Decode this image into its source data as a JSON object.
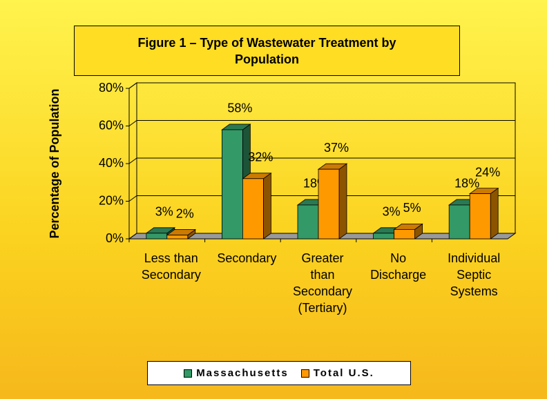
{
  "chart_data": {
    "type": "bar3d",
    "title": "Figure 1 – Type of Wastewater Treatment by Population",
    "y_label": "Percentage of Population",
    "categories": [
      "Less than Secondary",
      "Secondary",
      "Greater than Secondary (Tertiary)",
      "No Discharge",
      "Individual Septic Systems"
    ],
    "series": [
      {
        "name": "Massachusetts",
        "color": "#339966",
        "values": [
          3,
          58,
          18,
          3,
          18
        ],
        "value_labels": [
          "3%",
          "58%",
          "18%",
          "3%",
          "18%"
        ]
      },
      {
        "name": "Total U.S.",
        "color": "#ff9900",
        "values": [
          2,
          32,
          37,
          5,
          24
        ],
        "value_labels": [
          "2%",
          "32%",
          "37%",
          "5%",
          "24%"
        ]
      }
    ],
    "ylim": [
      0,
      80
    ],
    "yticks": [
      {
        "value": 0,
        "label": "0%"
      },
      {
        "value": 20,
        "label": "20%"
      },
      {
        "value": 40,
        "label": "40%"
      },
      {
        "value": 60,
        "label": "60%"
      },
      {
        "value": 80,
        "label": "80%"
      }
    ],
    "grid": true,
    "legend": "bottom"
  }
}
